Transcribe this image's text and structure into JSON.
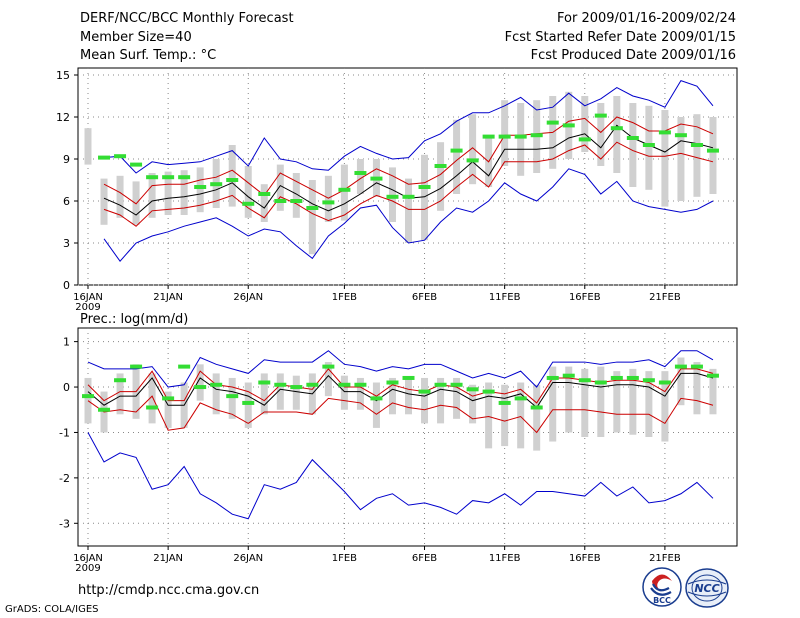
{
  "header": {
    "title": "DERF/NCC/BCC Monthly Forecast",
    "member_size": "Member Size=40",
    "variable": "Mean Surf. Temp.: °C",
    "period": "For 2009/01/16-2009/02/24",
    "refer_date": "Fcst Started Refer Date 2009/01/15",
    "produced_date": "Fcst Produced Date 2009/01/16"
  },
  "footer": {
    "url": "http://cmdp.ncc.cma.gov.cn",
    "grads_credit": "GrADS: COLA/IGES"
  },
  "logos": {
    "bcc": "BCC",
    "ncc": "NCC"
  },
  "colors": {
    "mean": "#000000",
    "spread": "#cc0000",
    "extreme": "#0000cc",
    "obs": "#33dd33",
    "box": "#d0d0d0",
    "grid": "#888888"
  },
  "chart_data": [
    {
      "type": "line",
      "title": "Mean Surf. Temp.: °C",
      "xlabel": "",
      "ylabel": "°C",
      "ylim": [
        0,
        15.5
      ],
      "yticks": [
        0,
        3,
        6,
        9,
        12,
        15
      ],
      "xlim": [
        0,
        40
      ],
      "x_ticks": [
        {
          "x": 0,
          "label": "16JAN"
        },
        {
          "x": 5,
          "label": "21JAN"
        },
        {
          "x": 10,
          "label": "26JAN"
        },
        {
          "x": 16,
          "label": "1FEB"
        },
        {
          "x": 21,
          "label": "6FEB"
        },
        {
          "x": 26,
          "label": "11FEB"
        },
        {
          "x": 31,
          "label": "16FEB"
        },
        {
          "x": 36,
          "label": "21FEB"
        }
      ],
      "year_label": "2009",
      "days": [
        1,
        2,
        3,
        4,
        5,
        6,
        7,
        8,
        9,
        10,
        11,
        12,
        13,
        14,
        15,
        16,
        17,
        18,
        19,
        20,
        21,
        22,
        23,
        24,
        25,
        26,
        27,
        28,
        29,
        30,
        31,
        32,
        33,
        34,
        35,
        36,
        37,
        38,
        39
      ],
      "series": [
        {
          "name": "ensemble mean",
          "values": [
            6.2,
            5.7,
            5.0,
            6.0,
            6.2,
            6.3,
            6.5,
            6.8,
            7.3,
            6.3,
            5.5,
            7.1,
            6.5,
            5.8,
            5.3,
            5.8,
            6.5,
            7.3,
            6.8,
            6.2,
            6.3,
            6.9,
            7.8,
            8.8,
            7.8,
            9.7,
            9.7,
            9.7,
            9.8,
            10.5,
            10.8,
            9.8,
            11.4,
            10.5,
            10.0,
            9.5,
            10.3,
            10.1,
            9.8
          ]
        },
        {
          "name": "upper spread",
          "values": [
            7.2,
            6.6,
            5.8,
            7.1,
            7.2,
            7.2,
            7.5,
            7.7,
            8.2,
            7.3,
            6.4,
            8.0,
            7.4,
            6.8,
            6.2,
            6.8,
            7.6,
            8.3,
            7.8,
            7.2,
            7.3,
            7.9,
            8.9,
            9.8,
            8.8,
            10.7,
            10.7,
            10.8,
            10.9,
            11.7,
            11.9,
            10.9,
            12.0,
            11.6,
            11.0,
            11.0,
            11.5,
            11.3,
            10.8
          ]
        },
        {
          "name": "lower spread",
          "values": [
            5.4,
            5.0,
            4.2,
            5.3,
            5.4,
            5.5,
            5.7,
            6.0,
            6.4,
            5.5,
            4.8,
            6.3,
            5.8,
            5.1,
            4.6,
            5.0,
            5.8,
            6.4,
            6.0,
            5.4,
            5.4,
            6.0,
            7.0,
            7.9,
            7.0,
            8.8,
            8.8,
            8.8,
            9.0,
            9.6,
            10.0,
            9.0,
            10.2,
            9.6,
            9.2,
            9.2,
            9.4,
            9.1,
            8.8
          ]
        },
        {
          "name": "ensemble max",
          "values": [
            9.1,
            9.2,
            8.0,
            8.8,
            8.6,
            8.7,
            8.8,
            9.2,
            9.6,
            8.5,
            10.5,
            9.0,
            8.8,
            8.3,
            8.2,
            9.2,
            9.9,
            9.4,
            9.0,
            9.1,
            10.3,
            10.8,
            11.7,
            12.3,
            12.3,
            12.8,
            13.4,
            12.5,
            12.7,
            13.7,
            12.8,
            13.3,
            14.1,
            13.5,
            13.2,
            12.7,
            14.6,
            14.2,
            12.8
          ]
        },
        {
          "name": "ensemble min",
          "values": [
            3.3,
            1.7,
            3.0,
            3.5,
            3.8,
            4.2,
            4.5,
            4.8,
            4.2,
            3.5,
            4.0,
            3.8,
            2.8,
            1.9,
            3.5,
            4.4,
            5.5,
            5.7,
            4.1,
            3.0,
            3.2,
            4.5,
            5.5,
            5.2,
            6.0,
            7.3,
            6.5,
            6.0,
            7.0,
            8.3,
            7.9,
            6.5,
            7.4,
            6.0,
            5.6,
            5.4,
            5.2,
            5.4,
            6.0
          ]
        }
      ],
      "observed": [
        9.1,
        9.2,
        8.6,
        7.7,
        7.7,
        7.7,
        7.0,
        7.2,
        7.5,
        5.8,
        6.5,
        6.0,
        6.0,
        5.5,
        5.9,
        6.8,
        8.0,
        7.6,
        6.3,
        6.3,
        7.0,
        8.5,
        9.6,
        8.9,
        10.6,
        10.6,
        10.6,
        10.7,
        11.6,
        11.4,
        10.4,
        12.1,
        11.2,
        10.5,
        10.0,
        10.9,
        10.7,
        10.0,
        9.6
      ],
      "boxes": [
        {
          "day": 0,
          "low": 8.6,
          "high": 11.2
        },
        {
          "day": 1,
          "low": 4.3,
          "high": 7.6
        },
        {
          "day": 2,
          "low": 4.8,
          "high": 7.8
        },
        {
          "day": 3,
          "low": 4.3,
          "high": 7.4
        },
        {
          "day": 4,
          "low": 4.8,
          "high": 8.0
        },
        {
          "day": 5,
          "low": 5.0,
          "high": 8.1
        },
        {
          "day": 6,
          "low": 5.0,
          "high": 8.2
        },
        {
          "day": 7,
          "low": 5.2,
          "high": 8.4
        },
        {
          "day": 8,
          "low": 5.5,
          "high": 9.0
        },
        {
          "day": 9,
          "low": 5.6,
          "high": 10.0
        },
        {
          "day": 10,
          "low": 4.8,
          "high": 8.5
        },
        {
          "day": 11,
          "low": 4.5,
          "high": 7.2
        },
        {
          "day": 12,
          "low": 5.3,
          "high": 8.6
        },
        {
          "day": 13,
          "low": 4.8,
          "high": 8.0
        },
        {
          "day": 14,
          "low": 2.2,
          "high": 7.5
        },
        {
          "day": 15,
          "low": 4.5,
          "high": 7.8
        },
        {
          "day": 16,
          "low": 4.6,
          "high": 8.6
        },
        {
          "day": 17,
          "low": 6.5,
          "high": 9.0
        },
        {
          "day": 18,
          "low": 6.3,
          "high": 9.0
        },
        {
          "day": 19,
          "low": 4.5,
          "high": 8.4
        },
        {
          "day": 20,
          "low": 3.0,
          "high": 7.6
        },
        {
          "day": 21,
          "low": 3.2,
          "high": 9.3
        },
        {
          "day": 22,
          "low": 5.3,
          "high": 10.2
        },
        {
          "day": 23,
          "low": 6.5,
          "high": 11.8
        },
        {
          "day": 24,
          "low": 7.2,
          "high": 12.2
        },
        {
          "day": 25,
          "low": 7.0,
          "high": 10.5
        },
        {
          "day": 26,
          "low": 8.5,
          "high": 13.2
        },
        {
          "day": 27,
          "low": 7.8,
          "high": 13.0
        },
        {
          "day": 28,
          "low": 8.0,
          "high": 13.2
        },
        {
          "day": 29,
          "low": 8.3,
          "high": 13.5
        },
        {
          "day": 30,
          "low": 9.0,
          "high": 13.8
        },
        {
          "day": 31,
          "low": 9.5,
          "high": 13.5
        },
        {
          "day": 32,
          "low": 8.5,
          "high": 13.0
        },
        {
          "day": 33,
          "low": 8.0,
          "high": 13.5
        },
        {
          "day": 34,
          "low": 7.0,
          "high": 13.0
        },
        {
          "day": 35,
          "low": 6.8,
          "high": 12.8
        },
        {
          "day": 36,
          "low": 5.6,
          "high": 12.5
        },
        {
          "day": 37,
          "low": 6.0,
          "high": 12.0
        },
        {
          "day": 38,
          "low": 6.3,
          "high": 12.2
        },
        {
          "day": 39,
          "low": 6.5,
          "high": 12.0
        }
      ]
    },
    {
      "type": "line",
      "title": "Prec.: log(mm/d)",
      "xlabel": "",
      "ylabel": "log(mm/d)",
      "ylim": [
        -3.5,
        1.3
      ],
      "yticks": [
        -3,
        -2,
        -1,
        0,
        1
      ],
      "xlim": [
        0,
        40
      ],
      "x_ticks": [
        {
          "x": 0,
          "label": "16JAN"
        },
        {
          "x": 5,
          "label": "21JAN"
        },
        {
          "x": 10,
          "label": "26JAN"
        },
        {
          "x": 16,
          "label": "1FEB"
        },
        {
          "x": 21,
          "label": "6FEB"
        },
        {
          "x": 26,
          "label": "11FEB"
        },
        {
          "x": 31,
          "label": "16FEB"
        },
        {
          "x": 36,
          "label": "21FEB"
        }
      ],
      "year_label": "2009",
      "days": [
        0,
        1,
        2,
        3,
        4,
        5,
        6,
        7,
        8,
        9,
        10,
        11,
        12,
        13,
        14,
        15,
        16,
        17,
        18,
        19,
        20,
        21,
        22,
        23,
        24,
        25,
        26,
        27,
        28,
        29,
        30,
        31,
        32,
        33,
        34,
        35,
        36,
        37,
        38,
        39
      ],
      "series": [
        {
          "name": "ensemble mean",
          "values": [
            -0.1,
            -0.4,
            -0.2,
            -0.2,
            0.2,
            -0.4,
            -0.4,
            0.2,
            -0.05,
            -0.1,
            -0.2,
            -0.4,
            -0.05,
            -0.1,
            -0.15,
            0.25,
            -0.1,
            -0.1,
            -0.3,
            -0.05,
            -0.15,
            -0.2,
            -0.05,
            -0.1,
            -0.3,
            -0.2,
            -0.25,
            -0.15,
            -0.45,
            0.1,
            0.1,
            0.05,
            0.0,
            0.05,
            0.05,
            0.0,
            -0.2,
            0.3,
            0.3,
            0.2
          ]
        },
        {
          "name": "upper spread",
          "values": [
            0.05,
            -0.3,
            -0.1,
            -0.1,
            0.35,
            -0.3,
            -0.3,
            0.35,
            0.05,
            0.0,
            -0.1,
            -0.3,
            0.05,
            0.0,
            -0.05,
            0.4,
            0.0,
            0.0,
            -0.2,
            0.05,
            -0.05,
            -0.1,
            0.05,
            0.0,
            -0.2,
            -0.1,
            -0.15,
            -0.05,
            -0.35,
            0.2,
            0.2,
            0.15,
            0.1,
            0.15,
            0.15,
            0.1,
            -0.1,
            0.4,
            0.4,
            0.3
          ]
        },
        {
          "name": "lower spread",
          "values": [
            -0.3,
            -0.55,
            -0.5,
            -0.55,
            -0.2,
            -0.95,
            -0.9,
            -0.35,
            -0.5,
            -0.6,
            -0.8,
            -0.55,
            -0.55,
            -0.55,
            -0.6,
            -0.25,
            -0.3,
            -0.35,
            -0.6,
            -0.35,
            -0.45,
            -0.5,
            -0.4,
            -0.45,
            -0.7,
            -0.65,
            -0.75,
            -0.65,
            -1.0,
            -0.5,
            -0.5,
            -0.5,
            -0.55,
            -0.6,
            -0.6,
            -0.6,
            -0.8,
            -0.25,
            -0.3,
            -0.4
          ]
        },
        {
          "name": "ensemble max",
          "values": [
            0.55,
            0.4,
            0.4,
            0.4,
            0.45,
            0.0,
            0.05,
            0.65,
            0.5,
            0.4,
            0.3,
            0.6,
            0.55,
            0.55,
            0.55,
            0.8,
            0.5,
            0.45,
            0.35,
            0.45,
            0.4,
            0.5,
            0.5,
            0.35,
            0.2,
            0.3,
            0.2,
            0.35,
            0.0,
            0.55,
            0.55,
            0.55,
            0.5,
            0.55,
            0.55,
            0.6,
            0.45,
            0.8,
            0.8,
            0.6
          ]
        },
        {
          "name": "ensemble min",
          "values": [
            -1.0,
            -1.65,
            -1.45,
            -1.55,
            -2.25,
            -2.15,
            -1.75,
            -2.35,
            -2.55,
            -2.8,
            -2.9,
            -2.15,
            -2.25,
            -2.1,
            -1.6,
            -1.95,
            -2.3,
            -2.7,
            -2.45,
            -2.35,
            -2.6,
            -2.55,
            -2.65,
            -2.8,
            -2.5,
            -2.55,
            -2.35,
            -2.6,
            -2.3,
            -2.3,
            -2.35,
            -2.4,
            -2.1,
            -2.4,
            -2.2,
            -2.55,
            -2.5,
            -2.35,
            -2.1,
            -2.45
          ]
        }
      ],
      "observed": [
        -0.2,
        -0.5,
        0.15,
        0.45,
        -0.45,
        -0.25,
        0.45,
        0.0,
        0.05,
        -0.2,
        -0.35,
        0.1,
        0.05,
        0.0,
        0.05,
        0.45,
        0.05,
        0.05,
        -0.25,
        0.1,
        0.2,
        -0.1,
        0.05,
        0.05,
        -0.05,
        -0.1,
        -0.35,
        -0.25,
        -0.45,
        0.2,
        0.25,
        0.15,
        0.1,
        0.2,
        0.2,
        0.15,
        0.1,
        0.45,
        0.45,
        0.25
      ],
      "boxes": [
        {
          "day": 0,
          "low": -0.8,
          "high": 0.2
        },
        {
          "day": 1,
          "low": -1.0,
          "high": -0.1
        },
        {
          "day": 2,
          "low": -0.6,
          "high": 0.3
        },
        {
          "day": 3,
          "low": -0.7,
          "high": 0.5
        },
        {
          "day": 4,
          "low": -0.8,
          "high": 0.3
        },
        {
          "day": 5,
          "low": -0.9,
          "high": -0.1
        },
        {
          "day": 6,
          "low": -0.9,
          "high": 0.1
        },
        {
          "day": 7,
          "low": -0.3,
          "high": 0.5
        },
        {
          "day": 8,
          "low": -0.6,
          "high": 0.3
        },
        {
          "day": 9,
          "low": -0.7,
          "high": 0.2
        },
        {
          "day": 10,
          "low": -0.9,
          "high": 0.1
        },
        {
          "day": 11,
          "low": -0.6,
          "high": 0.3
        },
        {
          "day": 12,
          "low": -0.5,
          "high": 0.3
        },
        {
          "day": 13,
          "low": -0.5,
          "high": 0.25
        },
        {
          "day": 14,
          "low": -0.6,
          "high": 0.3
        },
        {
          "day": 15,
          "low": -0.2,
          "high": 0.55
        },
        {
          "day": 16,
          "low": -0.5,
          "high": 0.25
        },
        {
          "day": 17,
          "low": -0.5,
          "high": 0.2
        },
        {
          "day": 18,
          "low": -0.9,
          "high": 0.1
        },
        {
          "day": 19,
          "low": -0.6,
          "high": 0.2
        },
        {
          "day": 20,
          "low": -0.6,
          "high": 0.2
        },
        {
          "day": 21,
          "low": -0.8,
          "high": 0.2
        },
        {
          "day": 22,
          "low": -0.8,
          "high": 0.2
        },
        {
          "day": 23,
          "low": -0.7,
          "high": 0.2
        },
        {
          "day": 24,
          "low": -0.8,
          "high": 0.05
        },
        {
          "day": 25,
          "low": -1.35,
          "high": 0.1
        },
        {
          "day": 26,
          "low": -1.3,
          "high": 0.05
        },
        {
          "day": 27,
          "low": -1.35,
          "high": 0.1
        },
        {
          "day": 28,
          "low": -1.4,
          "high": 0.05
        },
        {
          "day": 29,
          "low": -1.2,
          "high": 0.45
        },
        {
          "day": 30,
          "low": -1.0,
          "high": 0.45
        },
        {
          "day": 31,
          "low": -1.1,
          "high": 0.4
        },
        {
          "day": 32,
          "low": -1.1,
          "high": 0.45
        },
        {
          "day": 33,
          "low": -1.0,
          "high": 0.35
        },
        {
          "day": 34,
          "low": -1.05,
          "high": 0.4
        },
        {
          "day": 35,
          "low": -1.1,
          "high": 0.35
        },
        {
          "day": 36,
          "low": -1.2,
          "high": 0.35
        },
        {
          "day": 37,
          "low": -0.4,
          "high": 0.65
        },
        {
          "day": 38,
          "low": -0.6,
          "high": 0.55
        },
        {
          "day": 39,
          "low": -0.6,
          "high": 0.4
        }
      ]
    }
  ]
}
